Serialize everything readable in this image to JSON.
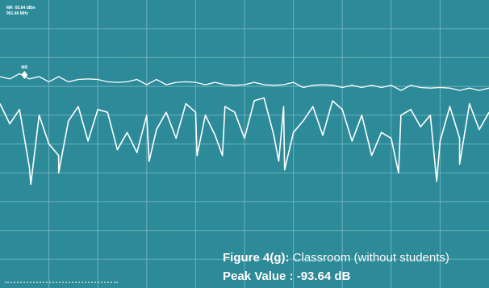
{
  "colors": {
    "background": "#2d8b99",
    "grid": "#7fbcc5",
    "trace": "#ffffff",
    "text": "#ffffff"
  },
  "marker": {
    "readout_level": "MR -93.64 dBm",
    "readout_freq": "961.46 MHz",
    "label": "MR"
  },
  "caption": {
    "figure_label": "Figure 4(g):",
    "figure_text": " Classroom (without students)",
    "peak": "Peak Value : -93.64 dB"
  },
  "chart_data": {
    "type": "line",
    "title": "",
    "xlabel": "",
    "ylabel": "",
    "grid": true,
    "grid_divisions": {
      "x": 10,
      "y": 10
    },
    "x": [
      0,
      2,
      4,
      6,
      8,
      10,
      12,
      14,
      16,
      18,
      20,
      22,
      24,
      26,
      28,
      30,
      32,
      34,
      36,
      38,
      40,
      42,
      44,
      46,
      48,
      50,
      52,
      54,
      56,
      58,
      60,
      62,
      64,
      66,
      68,
      70,
      72,
      74,
      76,
      78,
      80,
      82,
      84,
      86,
      88,
      90,
      92,
      94,
      96,
      98,
      100
    ],
    "series": [
      {
        "values": [
          7.3,
          7.3,
          7.4,
          7.3,
          7.3,
          7.2,
          7.3,
          7.2,
          7.2,
          7.3,
          7.2,
          7.2,
          7.1,
          7.2,
          7.2,
          7.1,
          7.2,
          7.1,
          7.1,
          7.2,
          7.1,
          7.1,
          7.1,
          7.1,
          7.0,
          7.1,
          7.1,
          7.1,
          7.0,
          7.1,
          7.1,
          7.0,
          7.0,
          7.1,
          7.0,
          7.0,
          7.0,
          7.0,
          7.0,
          7.0,
          7.0,
          6.9,
          7.0,
          7.0,
          6.9,
          7.0,
          6.9,
          6.9,
          6.9,
          6.9,
          6.9
        ]
      },
      {
        "values": [
          6.4,
          5.7,
          6.2,
          4.2,
          6.0,
          5.0,
          4.6,
          5.8,
          6.3,
          5.1,
          6.2,
          6.1,
          4.8,
          5.4,
          4.7,
          6.0,
          5.5,
          6.1,
          5.2,
          6.4,
          6.1,
          6.0,
          5.3,
          6.3,
          6.1,
          5.2,
          6.5,
          6.6,
          5.3,
          6.3,
          5.4,
          5.8,
          6.3,
          5.3,
          6.5,
          6.2,
          5.1,
          6.0,
          4.6,
          5.4,
          5.2,
          6.0,
          6.2,
          5.6,
          6.0,
          5.1,
          6.3,
          5.2,
          6.4,
          5.5,
          6.1
        ]
      }
    ],
    "dips": [
      {
        "x": 6.3,
        "y": 3.6
      },
      {
        "x": 12.0,
        "y": 4.0
      },
      {
        "x": 30.5,
        "y": 4.4
      },
      {
        "x": 40.3,
        "y": 4.6
      },
      {
        "x": 45.5,
        "y": 4.6
      },
      {
        "x": 57.0,
        "y": 4.4
      },
      {
        "x": 58.2,
        "y": 4.1
      },
      {
        "x": 81.5,
        "y": 4.0
      },
      {
        "x": 89.3,
        "y": 3.7
      },
      {
        "x": 94.0,
        "y": 4.3
      }
    ],
    "marker_point": {
      "x": 5.0,
      "y": 7.4
    }
  }
}
